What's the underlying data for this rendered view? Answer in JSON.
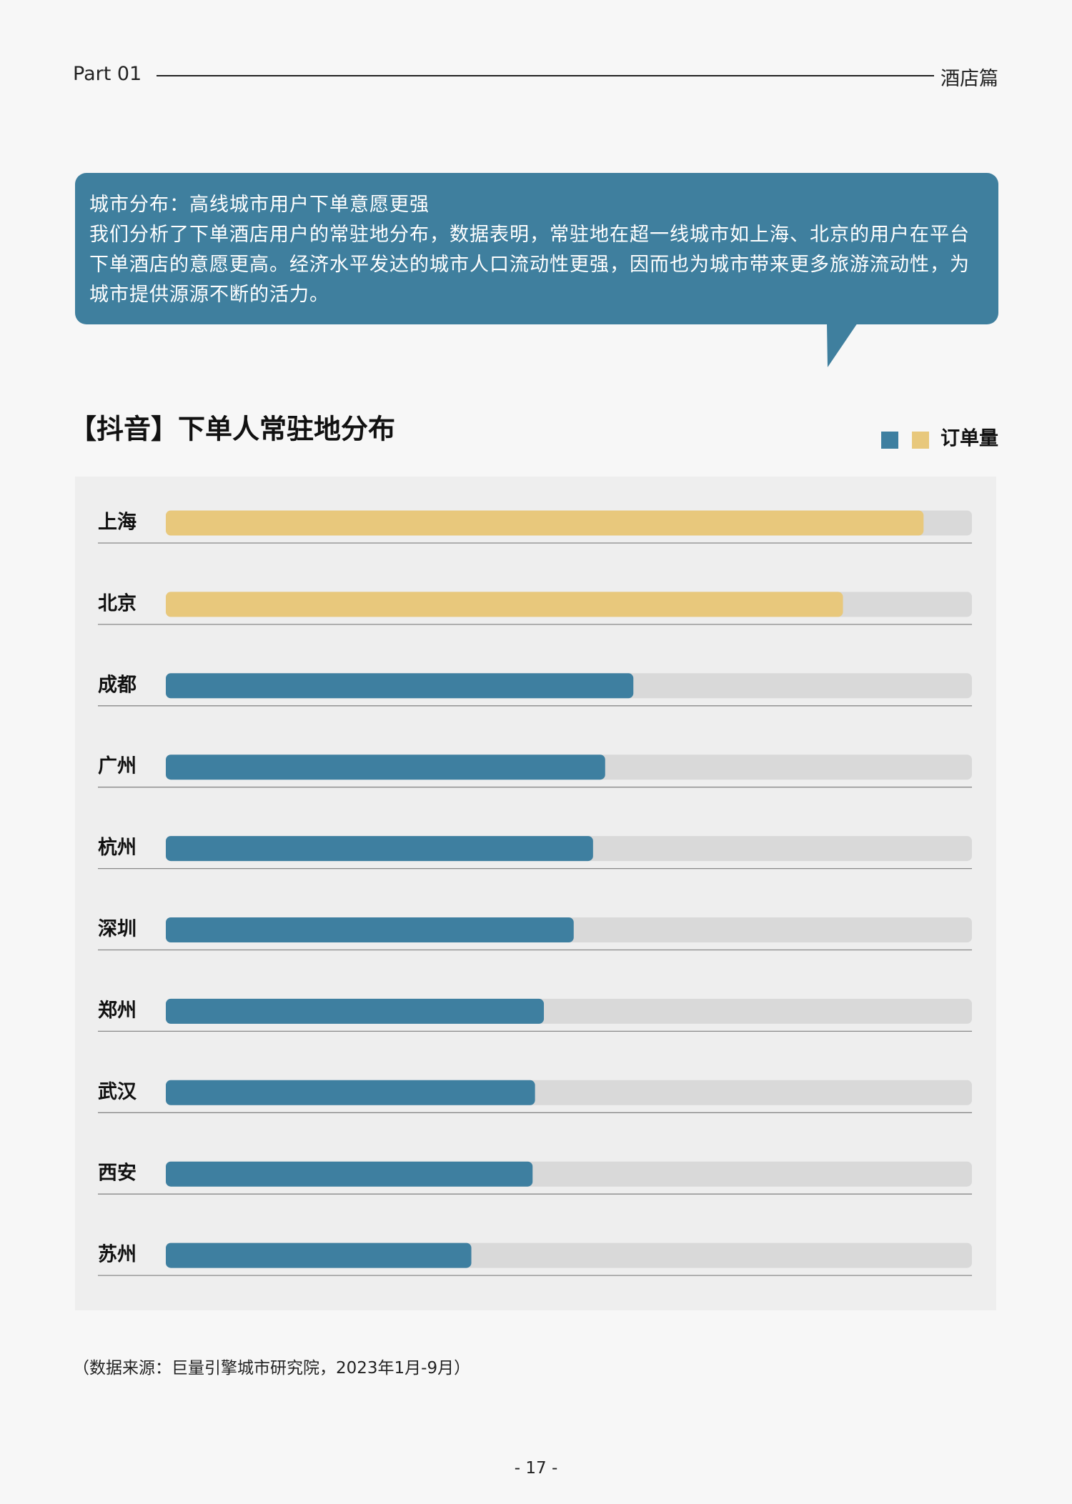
{
  "header": {
    "part": "Part  01",
    "section": "酒店篇"
  },
  "callout": {
    "title": "城市分布：高线城市用户下单意愿更强",
    "text": "我们分析了下单酒店用户的常驻地分布，数据表明，常驻地在超一线城市如上海、北京的用户在平台下单酒店的意愿更高。经济水平发达的城市人口流动性更强，因而也为城市带来更多旅游流动性，为城市提供源源不断的活力。"
  },
  "chart_data": {
    "type": "bar",
    "orientation": "horizontal",
    "title": "【抖音】下单人常驻地分布",
    "categories": [
      "上海",
      "北京",
      "成都",
      "广州",
      "杭州",
      "深圳",
      "郑州",
      "武汉",
      "西安",
      "苏州"
    ],
    "series": [
      {
        "name": "订单量",
        "values": [
          94,
          84,
          58,
          54.5,
          53,
          50.6,
          46.9,
          45.8,
          45.5,
          37.9
        ],
        "colors": [
          "#e8c87c",
          "#e8c87c",
          "#3e7fa0",
          "#3e7fa0",
          "#3e7fa0",
          "#3e7fa0",
          "#3e7fa0",
          "#3e7fa0",
          "#3e7fa0",
          "#3e7fa0"
        ]
      }
    ],
    "legend_colors": [
      "#3e7fa0",
      "#e8c87c"
    ],
    "xlim": [
      0,
      100
    ]
  },
  "footer": {
    "source": "（数据来源：巨量引擎城市研究院，2023年1月-9月）",
    "page": "- 17 -"
  }
}
